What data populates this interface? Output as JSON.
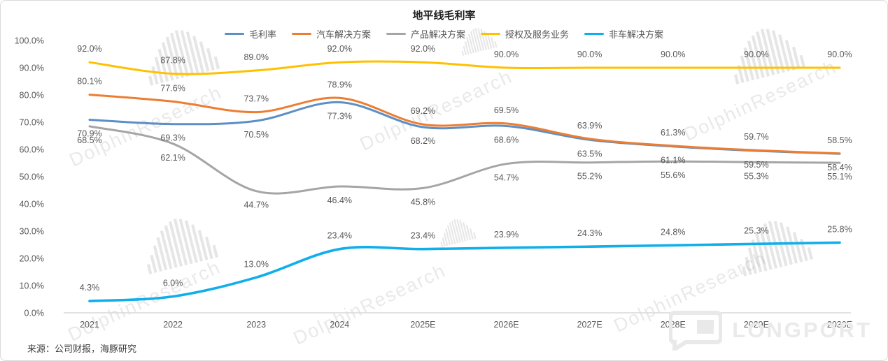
{
  "chart_data": {
    "type": "line",
    "title": "地平线毛利率",
    "categories": [
      "2021",
      "2022",
      "2023",
      "2024",
      "2025E",
      "2026E",
      "2027E",
      "2028E",
      "2029E",
      "2030E"
    ],
    "series": [
      {
        "name": "毛利率",
        "color": "#5B8FC6",
        "label_side": "below",
        "values": [
          70.9,
          69.3,
          70.5,
          77.3,
          68.2,
          68.6,
          63.5,
          61.1,
          59.5,
          58.4
        ]
      },
      {
        "name": "汽车解决方案",
        "color": "#ED7D31",
        "label_side": "above",
        "values": [
          80.1,
          77.6,
          73.7,
          78.9,
          69.2,
          69.5,
          63.9,
          61.3,
          59.7,
          58.5
        ]
      },
      {
        "name": "产品解决方案",
        "color": "#A5A5A5",
        "label_side": "below",
        "values": [
          68.5,
          62.1,
          44.7,
          46.4,
          45.8,
          54.7,
          55.2,
          55.6,
          55.3,
          55.1
        ]
      },
      {
        "name": "授权及服务业务",
        "color": "#FFC000",
        "label_side": "above",
        "values": [
          92.0,
          87.8,
          89.0,
          92.0,
          92.0,
          90.0,
          90.0,
          90.0,
          90.0,
          90.0
        ]
      },
      {
        "name": "非车解决方案",
        "color": "#10AEEB",
        "label_side": "above",
        "values": [
          4.3,
          6.0,
          13.0,
          23.4,
          23.4,
          23.9,
          24.3,
          24.8,
          25.3,
          25.8
        ]
      }
    ],
    "xlabel": "",
    "ylabel": "",
    "ylim": [
      0,
      100
    ],
    "y_tick_labels": [
      "100.0%",
      "90.0%",
      "80.0%",
      "70.0%",
      "60.0%",
      "50.0%",
      "40.0%",
      "30.0%",
      "20.0%",
      "10.0%",
      "0.0%"
    ],
    "grid": false,
    "legend_position": "top-center",
    "label_format": "percent-one-decimal"
  },
  "source_note": "来源：公司财报，海豚研究",
  "watermark": {
    "text": "DolphinResearch",
    "brand": "LONGPORT"
  }
}
